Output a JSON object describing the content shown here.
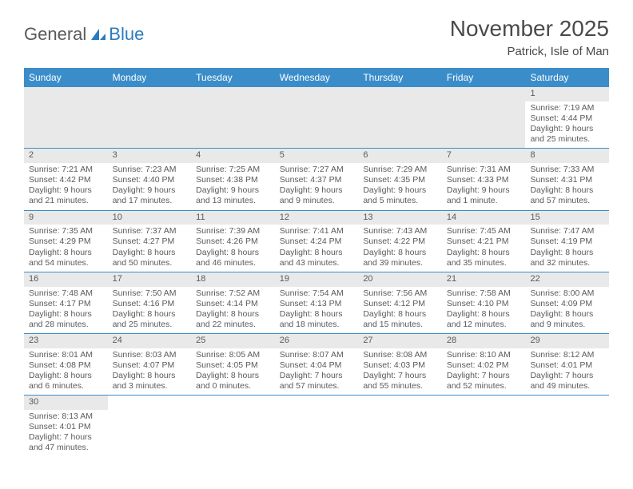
{
  "logo": {
    "part1": "General",
    "part2": "Blue"
  },
  "title": "November 2025",
  "location": "Patrick, Isle of Man",
  "colors": {
    "header_bg": "#3a8dc9",
    "header_text": "#ffffff",
    "daynum_bg": "#e9e9e9",
    "text": "#5a5a5a",
    "divider": "#3a8dc9"
  },
  "weekdays": [
    "Sunday",
    "Monday",
    "Tuesday",
    "Wednesday",
    "Thursday",
    "Friday",
    "Saturday"
  ],
  "weeks": [
    [
      null,
      null,
      null,
      null,
      null,
      null,
      {
        "n": "1",
        "sr": "Sunrise: 7:19 AM",
        "ss": "Sunset: 4:44 PM",
        "d1": "Daylight: 9 hours",
        "d2": "and 25 minutes."
      }
    ],
    [
      {
        "n": "2",
        "sr": "Sunrise: 7:21 AM",
        "ss": "Sunset: 4:42 PM",
        "d1": "Daylight: 9 hours",
        "d2": "and 21 minutes."
      },
      {
        "n": "3",
        "sr": "Sunrise: 7:23 AM",
        "ss": "Sunset: 4:40 PM",
        "d1": "Daylight: 9 hours",
        "d2": "and 17 minutes."
      },
      {
        "n": "4",
        "sr": "Sunrise: 7:25 AM",
        "ss": "Sunset: 4:38 PM",
        "d1": "Daylight: 9 hours",
        "d2": "and 13 minutes."
      },
      {
        "n": "5",
        "sr": "Sunrise: 7:27 AM",
        "ss": "Sunset: 4:37 PM",
        "d1": "Daylight: 9 hours",
        "d2": "and 9 minutes."
      },
      {
        "n": "6",
        "sr": "Sunrise: 7:29 AM",
        "ss": "Sunset: 4:35 PM",
        "d1": "Daylight: 9 hours",
        "d2": "and 5 minutes."
      },
      {
        "n": "7",
        "sr": "Sunrise: 7:31 AM",
        "ss": "Sunset: 4:33 PM",
        "d1": "Daylight: 9 hours",
        "d2": "and 1 minute."
      },
      {
        "n": "8",
        "sr": "Sunrise: 7:33 AM",
        "ss": "Sunset: 4:31 PM",
        "d1": "Daylight: 8 hours",
        "d2": "and 57 minutes."
      }
    ],
    [
      {
        "n": "9",
        "sr": "Sunrise: 7:35 AM",
        "ss": "Sunset: 4:29 PM",
        "d1": "Daylight: 8 hours",
        "d2": "and 54 minutes."
      },
      {
        "n": "10",
        "sr": "Sunrise: 7:37 AM",
        "ss": "Sunset: 4:27 PM",
        "d1": "Daylight: 8 hours",
        "d2": "and 50 minutes."
      },
      {
        "n": "11",
        "sr": "Sunrise: 7:39 AM",
        "ss": "Sunset: 4:26 PM",
        "d1": "Daylight: 8 hours",
        "d2": "and 46 minutes."
      },
      {
        "n": "12",
        "sr": "Sunrise: 7:41 AM",
        "ss": "Sunset: 4:24 PM",
        "d1": "Daylight: 8 hours",
        "d2": "and 43 minutes."
      },
      {
        "n": "13",
        "sr": "Sunrise: 7:43 AM",
        "ss": "Sunset: 4:22 PM",
        "d1": "Daylight: 8 hours",
        "d2": "and 39 minutes."
      },
      {
        "n": "14",
        "sr": "Sunrise: 7:45 AM",
        "ss": "Sunset: 4:21 PM",
        "d1": "Daylight: 8 hours",
        "d2": "and 35 minutes."
      },
      {
        "n": "15",
        "sr": "Sunrise: 7:47 AM",
        "ss": "Sunset: 4:19 PM",
        "d1": "Daylight: 8 hours",
        "d2": "and 32 minutes."
      }
    ],
    [
      {
        "n": "16",
        "sr": "Sunrise: 7:48 AM",
        "ss": "Sunset: 4:17 PM",
        "d1": "Daylight: 8 hours",
        "d2": "and 28 minutes."
      },
      {
        "n": "17",
        "sr": "Sunrise: 7:50 AM",
        "ss": "Sunset: 4:16 PM",
        "d1": "Daylight: 8 hours",
        "d2": "and 25 minutes."
      },
      {
        "n": "18",
        "sr": "Sunrise: 7:52 AM",
        "ss": "Sunset: 4:14 PM",
        "d1": "Daylight: 8 hours",
        "d2": "and 22 minutes."
      },
      {
        "n": "19",
        "sr": "Sunrise: 7:54 AM",
        "ss": "Sunset: 4:13 PM",
        "d1": "Daylight: 8 hours",
        "d2": "and 18 minutes."
      },
      {
        "n": "20",
        "sr": "Sunrise: 7:56 AM",
        "ss": "Sunset: 4:12 PM",
        "d1": "Daylight: 8 hours",
        "d2": "and 15 minutes."
      },
      {
        "n": "21",
        "sr": "Sunrise: 7:58 AM",
        "ss": "Sunset: 4:10 PM",
        "d1": "Daylight: 8 hours",
        "d2": "and 12 minutes."
      },
      {
        "n": "22",
        "sr": "Sunrise: 8:00 AM",
        "ss": "Sunset: 4:09 PM",
        "d1": "Daylight: 8 hours",
        "d2": "and 9 minutes."
      }
    ],
    [
      {
        "n": "23",
        "sr": "Sunrise: 8:01 AM",
        "ss": "Sunset: 4:08 PM",
        "d1": "Daylight: 8 hours",
        "d2": "and 6 minutes."
      },
      {
        "n": "24",
        "sr": "Sunrise: 8:03 AM",
        "ss": "Sunset: 4:07 PM",
        "d1": "Daylight: 8 hours",
        "d2": "and 3 minutes."
      },
      {
        "n": "25",
        "sr": "Sunrise: 8:05 AM",
        "ss": "Sunset: 4:05 PM",
        "d1": "Daylight: 8 hours",
        "d2": "and 0 minutes."
      },
      {
        "n": "26",
        "sr": "Sunrise: 8:07 AM",
        "ss": "Sunset: 4:04 PM",
        "d1": "Daylight: 7 hours",
        "d2": "and 57 minutes."
      },
      {
        "n": "27",
        "sr": "Sunrise: 8:08 AM",
        "ss": "Sunset: 4:03 PM",
        "d1": "Daylight: 7 hours",
        "d2": "and 55 minutes."
      },
      {
        "n": "28",
        "sr": "Sunrise: 8:10 AM",
        "ss": "Sunset: 4:02 PM",
        "d1": "Daylight: 7 hours",
        "d2": "and 52 minutes."
      },
      {
        "n": "29",
        "sr": "Sunrise: 8:12 AM",
        "ss": "Sunset: 4:01 PM",
        "d1": "Daylight: 7 hours",
        "d2": "and 49 minutes."
      }
    ],
    [
      {
        "n": "30",
        "sr": "Sunrise: 8:13 AM",
        "ss": "Sunset: 4:01 PM",
        "d1": "Daylight: 7 hours",
        "d2": "and 47 minutes."
      },
      null,
      null,
      null,
      null,
      null,
      null
    ]
  ]
}
